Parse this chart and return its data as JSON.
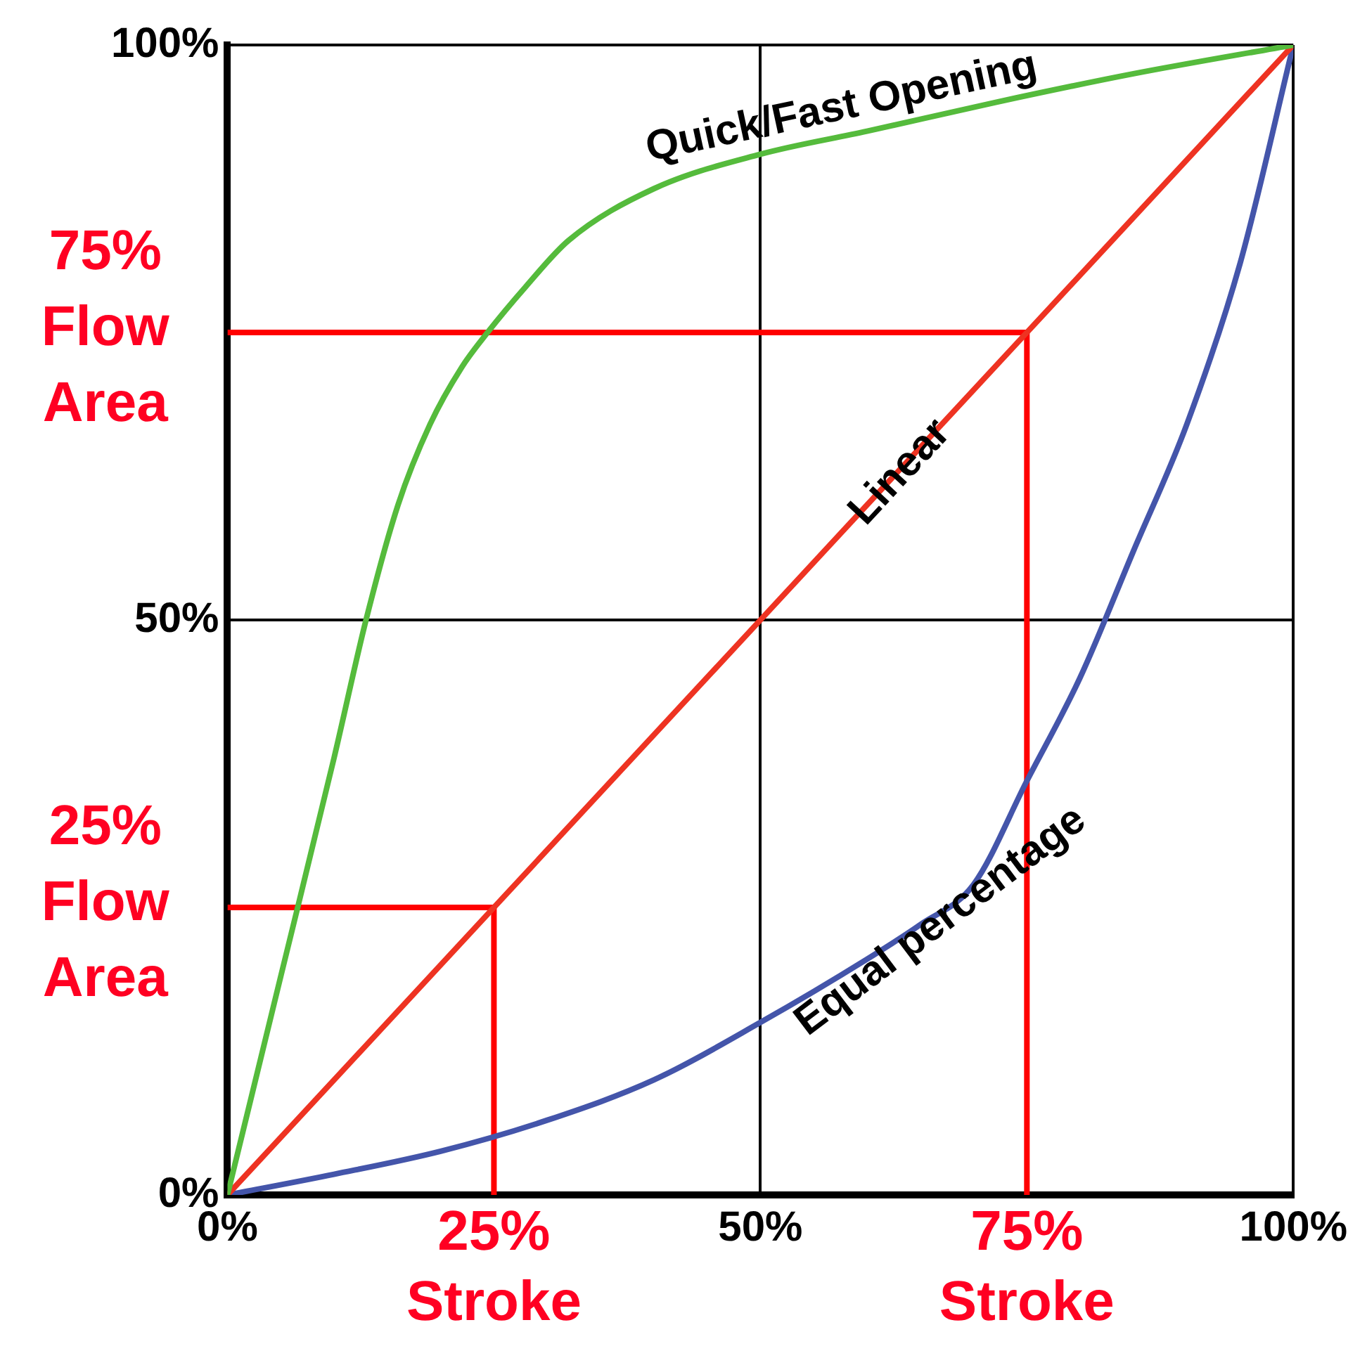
{
  "chart_data": {
    "type": "line",
    "xlim": [
      0,
      100
    ],
    "ylim": [
      0,
      100
    ],
    "xticks": [
      {
        "value": 0,
        "label": "0%"
      },
      {
        "value": 50,
        "label": "50%"
      },
      {
        "value": 100,
        "label": "100%"
      }
    ],
    "yticks": [
      {
        "value": 0,
        "label": "0%"
      },
      {
        "value": 50,
        "label": "50%"
      },
      {
        "value": 100,
        "label": "100%"
      }
    ],
    "grid": true,
    "legend": false,
    "marker": "none",
    "series": [
      {
        "name": "Quick/Fast Opening",
        "color": "#55bb3c",
        "x": [
          0,
          5,
          10,
          13,
          16,
          19,
          22,
          24.4,
          28,
          32,
          40,
          50,
          60,
          72,
          85,
          100
        ],
        "values": [
          0,
          19,
          38,
          50,
          60,
          67,
          72,
          75,
          79,
          83,
          87.5,
          90.5,
          92.5,
          95,
          97.5,
          100
        ]
      },
      {
        "name": "Linear",
        "color": "#ee3322",
        "x": [
          0,
          100
        ],
        "values": [
          0,
          100
        ]
      },
      {
        "name": "Equal percentage",
        "color": "#4455aa",
        "x": [
          0,
          10,
          20,
          30,
          40,
          50,
          60,
          65,
          70,
          75,
          80,
          85,
          90,
          95,
          100
        ],
        "values": [
          0,
          1.8,
          3.8,
          6.5,
          10,
          15,
          20.5,
          23.5,
          27,
          36,
          45,
          56,
          67,
          81,
          100
        ]
      },
      {
        "color": "#ff0000",
        "x": [
          0,
          75,
          75
        ],
        "values": [
          75,
          75,
          0
        ]
      },
      {
        "color": "#ff0000",
        "x": [
          0,
          25,
          25
        ],
        "values": [
          25,
          25,
          0
        ]
      }
    ],
    "annotations": [
      "75% Flow Area",
      "25% Flow Area",
      "25% Stroke",
      "75% Stroke"
    ]
  }
}
